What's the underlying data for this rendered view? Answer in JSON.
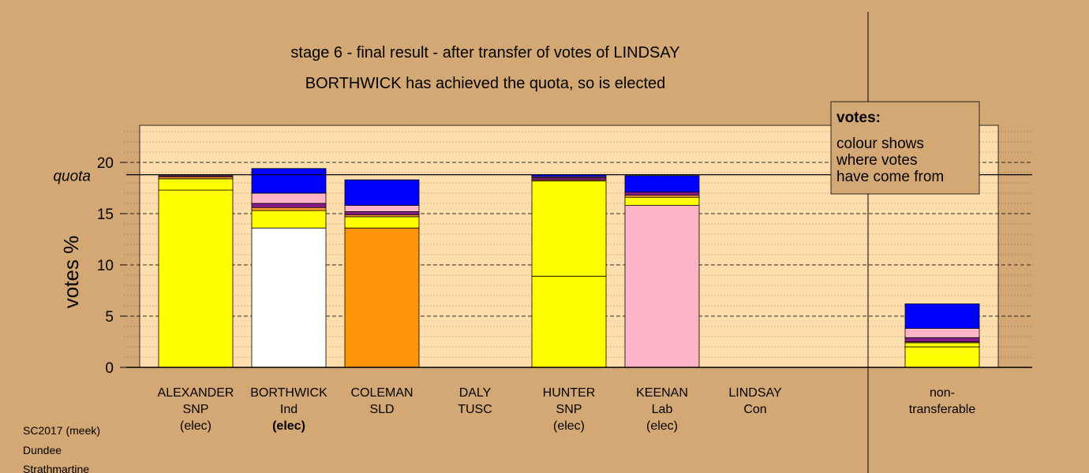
{
  "chart_data": {
    "type": "bar",
    "stacked": true,
    "title": "stage 6 - final result - after transfer of votes of LINDSAY",
    "subtitle": "BORTHWICK has achieved the quota, so is elected",
    "ylabel": "votes %",
    "ylim": [
      0,
      23.5
    ],
    "yticks": [
      "0",
      "5",
      "10",
      "15",
      "20"
    ],
    "quota": {
      "label": "quota",
      "value": 18.8
    },
    "grid": true,
    "legend": {
      "position": "top-right",
      "title": "votes:",
      "lines": [
        "colour shows",
        "where votes",
        "have come from"
      ]
    },
    "categories": [
      {
        "name": "ALEXANDER",
        "party": "SNP",
        "status": "(elec)",
        "status_bold": false,
        "segments": [
          {
            "value": 17.3,
            "color": "#ffff00"
          },
          {
            "value": 1.1,
            "color": "#ffff00"
          },
          {
            "value": 0.2,
            "color": "#ff9933"
          },
          {
            "value": 0.1,
            "color": "#8b1a8b"
          }
        ]
      },
      {
        "name": "BORTHWICK",
        "party": "Ind",
        "status": "(elec)",
        "status_bold": true,
        "segments": [
          {
            "value": 13.6,
            "color": "#ffffff"
          },
          {
            "value": 1.7,
            "color": "#ffff00"
          },
          {
            "value": 0.3,
            "color": "#ff9933"
          },
          {
            "value": 0.4,
            "color": "#8b1a8b"
          },
          {
            "value": 1.0,
            "color": "#ffb3c6"
          },
          {
            "value": 2.4,
            "color": "#0000ff"
          }
        ]
      },
      {
        "name": "COLEMAN",
        "party": "SLD",
        "status": "",
        "status_bold": false,
        "segments": [
          {
            "value": 13.6,
            "color": "#ff9408"
          },
          {
            "value": 1.1,
            "color": "#ffff00"
          },
          {
            "value": 0.2,
            "color": "#ff9933"
          },
          {
            "value": 0.3,
            "color": "#8b1a8b"
          },
          {
            "value": 0.6,
            "color": "#ffb3c6"
          },
          {
            "value": 2.5,
            "color": "#0000ff"
          }
        ]
      },
      {
        "name": "DALY",
        "party": "TUSC",
        "status": "",
        "status_bold": false,
        "segments": []
      },
      {
        "name": "HUNTER",
        "party": "SNP",
        "status": "(elec)",
        "status_bold": false,
        "segments": [
          {
            "value": 8.9,
            "color": "#ffff00"
          },
          {
            "value": 9.3,
            "color": "#ffff00"
          },
          {
            "value": 0.1,
            "color": "#ff9933"
          },
          {
            "value": 0.2,
            "color": "#8b1a8b"
          },
          {
            "value": 0.1,
            "color": "#ffb3c6"
          },
          {
            "value": 0.2,
            "color": "#0000ff"
          }
        ]
      },
      {
        "name": "KEENAN",
        "party": "Lab",
        "status": "(elec)",
        "status_bold": false,
        "segments": [
          {
            "value": 15.8,
            "color": "#ffb3c6"
          },
          {
            "value": 0.8,
            "color": "#ffff00"
          },
          {
            "value": 0.2,
            "color": "#ff9933"
          },
          {
            "value": 0.3,
            "color": "#8b1a8b"
          },
          {
            "value": 1.6,
            "color": "#0000ff"
          }
        ]
      },
      {
        "name": "LINDSAY",
        "party": "Con",
        "status": "",
        "status_bold": false,
        "segments": []
      },
      {
        "name": "non-",
        "party": "transferable",
        "status": "",
        "status_bold": false,
        "non_transferable": true,
        "segments": [
          {
            "value": 2.0,
            "color": "#ffff00"
          },
          {
            "value": 0.4,
            "color": "#ffff00"
          },
          {
            "value": 0.1,
            "color": "#ff9933"
          },
          {
            "value": 0.4,
            "color": "#8b1a8b"
          },
          {
            "value": 0.9,
            "color": "#ffb3c6"
          },
          {
            "value": 2.4,
            "color": "#0000ff"
          }
        ]
      }
    ]
  },
  "footer": {
    "lines": [
      "SC2017 (meek)",
      "Dundee",
      "Strathmartine"
    ]
  },
  "colors": {
    "background": "#d4a874",
    "plot": "#ffdead",
    "quota_line": "#000000"
  }
}
